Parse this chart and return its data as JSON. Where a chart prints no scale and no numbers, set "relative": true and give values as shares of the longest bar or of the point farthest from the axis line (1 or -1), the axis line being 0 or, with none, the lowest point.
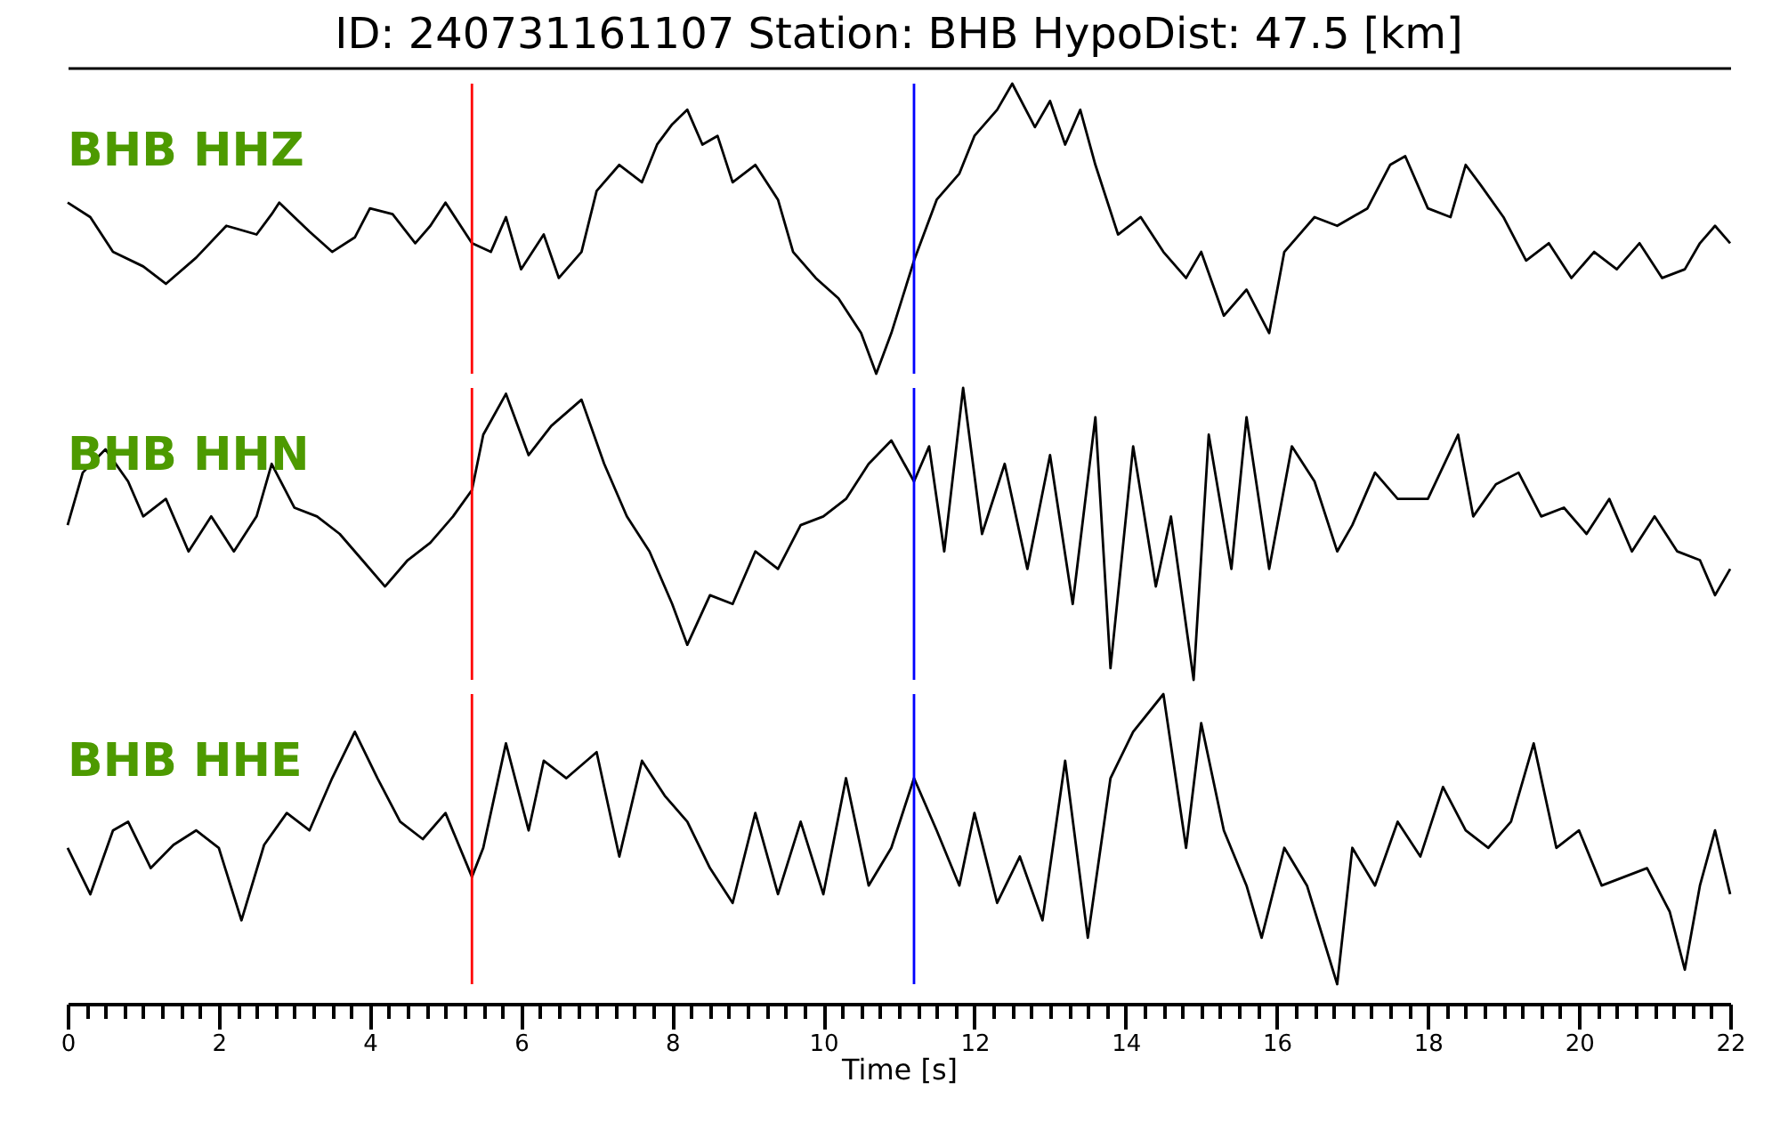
{
  "chart_data": [
    {
      "type": "line",
      "title": "ID: 240731161107   Station: BHB   HypoDist:     47.5 [km]",
      "relative": true,
      "tick_labels": false,
      "xlim": [
        0,
        22
      ],
      "annotations": [
        "BHB HHZ"
      ],
      "ref_lines": [
        {
          "axis": "x",
          "value": 5.35,
          "color": "#ff0000"
        },
        {
          "axis": "x",
          "value": 11.2,
          "color": "#0000ff"
        }
      ],
      "series": [
        {
          "color": "#000000",
          "x": [
            0,
            0.3,
            0.6,
            1.0,
            1.3,
            1.7,
            2.1,
            2.5,
            2.7,
            2.8,
            3.2,
            3.5,
            3.8,
            4.0,
            4.3,
            4.6,
            4.8,
            5.0,
            5.35,
            5.6,
            5.8,
            6.0,
            6.3,
            6.5,
            6.8,
            7.0,
            7.3,
            7.6,
            7.8,
            8.0,
            8.2,
            8.4,
            8.6,
            8.8,
            9.1,
            9.4,
            9.6,
            9.9,
            10.2,
            10.5,
            10.7,
            10.9,
            11.2,
            11.5,
            11.8,
            12.0,
            12.3,
            12.5,
            12.8,
            13.0,
            13.2,
            13.4,
            13.6,
            13.9,
            14.2,
            14.5,
            14.8,
            15.0,
            15.3,
            15.6,
            15.9,
            16.1,
            16.5,
            16.8,
            17.2,
            17.5,
            17.7,
            18.0,
            18.3,
            18.5,
            18.7,
            19.0,
            19.3,
            19.6,
            19.9,
            20.2,
            20.5,
            20.8,
            21.1,
            21.4,
            21.6,
            21.8,
            22.0
          ],
          "values": [
            0.59,
            0.54,
            0.42,
            0.37,
            0.31,
            0.4,
            0.51,
            0.48,
            0.55,
            0.59,
            0.49,
            0.42,
            0.47,
            0.57,
            0.55,
            0.45,
            0.51,
            0.59,
            0.45,
            0.42,
            0.54,
            0.36,
            0.48,
            0.33,
            0.42,
            0.63,
            0.72,
            0.66,
            0.79,
            0.86,
            0.91,
            0.79,
            0.82,
            0.66,
            0.72,
            0.6,
            0.42,
            0.33,
            0.26,
            0.14,
            0,
            0.14,
            0.39,
            0.6,
            0.69,
            0.82,
            0.91,
            1,
            0.85,
            0.94,
            0.79,
            0.91,
            0.72,
            0.48,
            0.54,
            0.42,
            0.33,
            0.42,
            0.2,
            0.29,
            0.14,
            0.42,
            0.54,
            0.51,
            0.57,
            0.72,
            0.75,
            0.57,
            0.54,
            0.72,
            0.65,
            0.54,
            0.39,
            0.45,
            0.33,
            0.42,
            0.36,
            0.45,
            0.33,
            0.36,
            0.45,
            0.51,
            0.45
          ]
        }
      ]
    },
    {
      "type": "line",
      "relative": true,
      "tick_labels": false,
      "xlim": [
        0,
        22
      ],
      "annotations": [
        "BHB HHN"
      ],
      "ref_lines": [
        {
          "axis": "x",
          "value": 5.35,
          "color": "#ff0000"
        },
        {
          "axis": "x",
          "value": 11.2,
          "color": "#0000ff"
        }
      ],
      "series": [
        {
          "color": "#000000",
          "x": [
            0,
            0.2,
            0.5,
            0.8,
            1.0,
            1.3,
            1.6,
            1.9,
            2.2,
            2.5,
            2.7,
            3.0,
            3.3,
            3.6,
            3.9,
            4.2,
            4.5,
            4.8,
            5.1,
            5.35,
            5.5,
            5.8,
            6.1,
            6.4,
            6.8,
            7.1,
            7.4,
            7.7,
            8.0,
            8.2,
            8.5,
            8.8,
            9.1,
            9.4,
            9.7,
            10.0,
            10.3,
            10.6,
            10.9,
            11.2,
            11.4,
            11.6,
            11.85,
            12.1,
            12.4,
            12.7,
            13.0,
            13.3,
            13.6,
            13.8,
            14.1,
            14.4,
            14.6,
            14.9,
            15.1,
            15.4,
            15.6,
            15.9,
            16.2,
            16.5,
            16.8,
            17.0,
            17.3,
            17.6,
            18.0,
            18.4,
            18.6,
            18.9,
            19.2,
            19.5,
            19.8,
            20.1,
            20.4,
            20.7,
            21.0,
            21.3,
            21.6,
            21.8,
            22.0
          ],
          "values": [
            0.53,
            0.71,
            0.79,
            0.68,
            0.56,
            0.62,
            0.44,
            0.56,
            0.44,
            0.56,
            0.74,
            0.59,
            0.56,
            0.5,
            0.41,
            0.32,
            0.41,
            0.47,
            0.56,
            0.65,
            0.84,
            0.98,
            0.77,
            0.87,
            0.96,
            0.74,
            0.56,
            0.44,
            0.26,
            0.12,
            0.29,
            0.26,
            0.44,
            0.38,
            0.53,
            0.56,
            0.62,
            0.74,
            0.82,
            0.68,
            0.8,
            0.44,
            1,
            0.5,
            0.74,
            0.38,
            0.77,
            0.26,
            0.9,
            0.04,
            0.8,
            0.32,
            0.56,
            0,
            0.84,
            0.38,
            0.9,
            0.38,
            0.8,
            0.68,
            0.44,
            0.53,
            0.71,
            0.62,
            0.62,
            0.84,
            0.56,
            0.67,
            0.71,
            0.56,
            0.59,
            0.5,
            0.62,
            0.44,
            0.56,
            0.44,
            0.41,
            0.29,
            0.38
          ]
        }
      ]
    },
    {
      "type": "line",
      "relative": true,
      "tick_labels": "x",
      "xlim": [
        0,
        22
      ],
      "xlabel": "Time [s]",
      "annotations": [
        "BHB HHE"
      ],
      "xticks": [
        0,
        {
          "value": 0.25,
          "label": null
        },
        {
          "value": 0.5,
          "label": null
        },
        {
          "value": 0.75,
          "label": null
        },
        {
          "value": 1,
          "label": null
        },
        {
          "value": 1.25,
          "label": null
        },
        {
          "value": 1.5,
          "label": null
        },
        {
          "value": 1.75,
          "label": null
        },
        2,
        {
          "value": 2.25,
          "label": null
        },
        {
          "value": 2.5,
          "label": null
        },
        {
          "value": 2.75,
          "label": null
        },
        {
          "value": 3,
          "label": null
        },
        {
          "value": 3.25,
          "label": null
        },
        {
          "value": 3.5,
          "label": null
        },
        {
          "value": 3.75,
          "label": null
        },
        4,
        {
          "value": 4.25,
          "label": null
        },
        {
          "value": 4.5,
          "label": null
        },
        {
          "value": 4.75,
          "label": null
        },
        {
          "value": 5,
          "label": null
        },
        {
          "value": 5.25,
          "label": null
        },
        {
          "value": 5.5,
          "label": null
        },
        {
          "value": 5.75,
          "label": null
        },
        6,
        {
          "value": 6.25,
          "label": null
        },
        {
          "value": 6.5,
          "label": null
        },
        {
          "value": 6.75,
          "label": null
        },
        {
          "value": 7,
          "label": null
        },
        {
          "value": 7.25,
          "label": null
        },
        {
          "value": 7.5,
          "label": null
        },
        {
          "value": 7.75,
          "label": null
        },
        8,
        {
          "value": 8.25,
          "label": null
        },
        {
          "value": 8.5,
          "label": null
        },
        {
          "value": 8.75,
          "label": null
        },
        {
          "value": 9,
          "label": null
        },
        {
          "value": 9.25,
          "label": null
        },
        {
          "value": 9.5,
          "label": null
        },
        {
          "value": 9.75,
          "label": null
        },
        10,
        {
          "value": 10.25,
          "label": null
        },
        {
          "value": 10.5,
          "label": null
        },
        {
          "value": 10.75,
          "label": null
        },
        {
          "value": 11,
          "label": null
        },
        {
          "value": 11.25,
          "label": null
        },
        {
          "value": 11.5,
          "label": null
        },
        {
          "value": 11.75,
          "label": null
        },
        12,
        {
          "value": 12.25,
          "label": null
        },
        {
          "value": 12.5,
          "label": null
        },
        {
          "value": 12.75,
          "label": null
        },
        {
          "value": 13,
          "label": null
        },
        {
          "value": 13.25,
          "label": null
        },
        {
          "value": 13.5,
          "label": null
        },
        {
          "value": 13.75,
          "label": null
        },
        14,
        {
          "value": 14.25,
          "label": null
        },
        {
          "value": 14.5,
          "label": null
        },
        {
          "value": 14.75,
          "label": null
        },
        {
          "value": 15,
          "label": null
        },
        {
          "value": 15.25,
          "label": null
        },
        {
          "value": 15.5,
          "label": null
        },
        {
          "value": 15.75,
          "label": null
        },
        16,
        {
          "value": 16.25,
          "label": null
        },
        {
          "value": 16.5,
          "label": null
        },
        {
          "value": 16.75,
          "label": null
        },
        {
          "value": 17,
          "label": null
        },
        {
          "value": 17.25,
          "label": null
        },
        {
          "value": 17.5,
          "label": null
        },
        {
          "value": 17.75,
          "label": null
        },
        18,
        {
          "value": 18.25,
          "label": null
        },
        {
          "value": 18.5,
          "label": null
        },
        {
          "value": 18.75,
          "label": null
        },
        {
          "value": 19,
          "label": null
        },
        {
          "value": 19.25,
          "label": null
        },
        {
          "value": 19.5,
          "label": null
        },
        {
          "value": 19.75,
          "label": null
        },
        20,
        {
          "value": 20.25,
          "label": null
        },
        {
          "value": 20.5,
          "label": null
        },
        {
          "value": 20.75,
          "label": null
        },
        {
          "value": 21,
          "label": null
        },
        {
          "value": 21.25,
          "label": null
        },
        {
          "value": 21.5,
          "label": null
        },
        {
          "value": 21.75,
          "label": null
        },
        22
      ],
      "ref_lines": [
        {
          "axis": "x",
          "value": 5.35,
          "color": "#ff0000"
        },
        {
          "axis": "x",
          "value": 11.2,
          "color": "#0000ff"
        }
      ],
      "series": [
        {
          "color": "#000000",
          "x": [
            0,
            0.3,
            0.6,
            0.8,
            1.1,
            1.4,
            1.7,
            2.0,
            2.3,
            2.6,
            2.9,
            3.2,
            3.5,
            3.8,
            4.1,
            4.4,
            4.7,
            5.0,
            5.35,
            5.5,
            5.8,
            6.1,
            6.3,
            6.6,
            7.0,
            7.3,
            7.6,
            7.9,
            8.2,
            8.5,
            8.8,
            9.1,
            9.4,
            9.7,
            10.0,
            10.3,
            10.6,
            10.9,
            11.2,
            11.5,
            11.8,
            12.0,
            12.3,
            12.6,
            12.9,
            13.2,
            13.5,
            13.8,
            14.1,
            14.5,
            14.8,
            15.0,
            15.3,
            15.6,
            15.8,
            16.1,
            16.4,
            16.8,
            17.0,
            17.3,
            17.6,
            17.9,
            18.2,
            18.5,
            18.8,
            19.1,
            19.4,
            19.7,
            20.0,
            20.3,
            20.6,
            20.9,
            21.2,
            21.4,
            21.6,
            21.8,
            22.0
          ],
          "values": [
            0.47,
            0.31,
            0.53,
            0.56,
            0.4,
            0.48,
            0.53,
            0.47,
            0.22,
            0.48,
            0.59,
            0.53,
            0.71,
            0.87,
            0.71,
            0.56,
            0.5,
            0.59,
            0.37,
            0.47,
            0.83,
            0.53,
            0.77,
            0.71,
            0.8,
            0.44,
            0.77,
            0.65,
            0.56,
            0.4,
            0.28,
            0.59,
            0.31,
            0.56,
            0.31,
            0.71,
            0.34,
            0.47,
            0.71,
            0.53,
            0.34,
            0.59,
            0.28,
            0.44,
            0.22,
            0.77,
            0.16,
            0.71,
            0.87,
            1,
            0.47,
            0.9,
            0.53,
            0.34,
            0.16,
            0.47,
            0.34,
            0,
            0.47,
            0.34,
            0.56,
            0.44,
            0.68,
            0.53,
            0.47,
            0.56,
            0.83,
            0.47,
            0.53,
            0.34,
            0.37,
            0.4,
            0.25,
            0.05,
            0.34,
            0.53,
            0.31
          ]
        }
      ]
    }
  ]
}
